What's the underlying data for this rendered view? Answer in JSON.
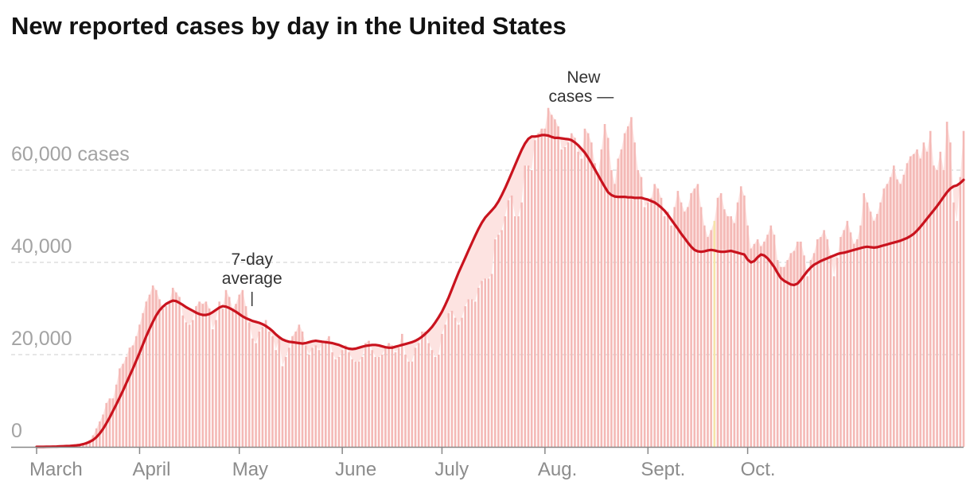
{
  "title": "New reported cases by day in the United States",
  "colors": {
    "bars": "#f4b9b6",
    "band": "#fde3e1",
    "line": "#c9131e",
    "highlight": "#f6e4a8",
    "grid": "#dddddd",
    "axis": "#888888"
  },
  "chart_data": {
    "type": "bar",
    "title": "New reported cases by day in the United States",
    "start_date": "2020-03-01",
    "ylim": [
      0,
      75000
    ],
    "yticks": [
      {
        "value": 0,
        "label": "0"
      },
      {
        "value": 20000,
        "label": "20,000"
      },
      {
        "value": 40000,
        "label": "40,000"
      },
      {
        "value": 60000,
        "label": "60,000 cases"
      }
    ],
    "xticks": [
      {
        "day": 0,
        "label": "March"
      },
      {
        "day": 31,
        "label": "April"
      },
      {
        "day": 61,
        "label": "May"
      },
      {
        "day": 92,
        "label": "June"
      },
      {
        "day": 122,
        "label": "July"
      },
      {
        "day": 153,
        "label": "Aug."
      },
      {
        "day": 184,
        "label": "Sept."
      },
      {
        "day": 214,
        "label": "Oct."
      }
    ],
    "highlight_day": 204,
    "series": [
      {
        "name": "New cases",
        "values": [
          0,
          0,
          10,
          20,
          30,
          40,
          60,
          80,
          100,
          150,
          200,
          300,
          400,
          600,
          800,
          1100,
          1500,
          2500,
          4000,
          5500,
          7000,
          9500,
          10500,
          10500,
          13500,
          17000,
          18000,
          19500,
          21500,
          22000,
          24000,
          26500,
          29000,
          31500,
          33000,
          35000,
          34000,
          32000,
          30000,
          30500,
          31500,
          34500,
          33500,
          32500,
          28500,
          27000,
          26500,
          27500,
          30500,
          31500,
          31000,
          31500,
          30000,
          25500,
          27500,
          31500,
          30000,
          34000,
          32500,
          30000,
          31000,
          33000,
          34000,
          30500,
          27000,
          23500,
          22500,
          25000,
          26000,
          27500,
          25000,
          24000,
          21000,
          23500,
          17500,
          19500,
          21500,
          24000,
          25000,
          26500,
          25000,
          22000,
          20000,
          21500,
          22000,
          21000,
          22500,
          23000,
          24000,
          20500,
          19000,
          19500,
          21000,
          22000,
          20500,
          19000,
          18500,
          18500,
          19500,
          22500,
          23000,
          21000,
          19500,
          19500,
          20000,
          21500,
          22500,
          22000,
          20500,
          21500,
          24500,
          20000,
          18500,
          18500,
          21500,
          22500,
          25000,
          25000,
          22500,
          21000,
          19500,
          20000,
          24500,
          26500,
          29000,
          29500,
          28000,
          26500,
          28000,
          30500,
          32000,
          32000,
          31500,
          34500,
          36000,
          36500,
          36500,
          37500,
          45000,
          46000,
          47000,
          50000,
          53500,
          54500,
          50000,
          50000,
          53000,
          61000,
          61000,
          60000,
          66500,
          68000,
          69000,
          69000,
          73500,
          72000,
          71000,
          69500,
          64500,
          65000,
          66000,
          68000,
          67000,
          64000,
          62500,
          69000,
          68000,
          66000,
          61500,
          59000,
          64500,
          70000,
          67000,
          60000,
          57000,
          62500,
          64500,
          68000,
          69500,
          71500,
          66000,
          60000,
          58500,
          52000,
          53000,
          54000,
          57000,
          56000,
          54000,
          50000,
          51000,
          48000,
          52000,
          55500,
          53000,
          51000,
          52000,
          55000,
          56000,
          57000,
          52000,
          48000,
          45500,
          47000,
          49000,
          54000,
          55000,
          51500,
          50000,
          50000,
          48500,
          53000,
          56500,
          54500,
          48000,
          43000,
          44000,
          45000,
          43500,
          44500,
          46000,
          48000,
          46000,
          40500,
          39000,
          39000,
          40500,
          42000,
          42500,
          44500,
          44500,
          41500,
          37000,
          40500,
          42000,
          45000,
          45500,
          47000,
          45000,
          41500,
          37000,
          41000,
          45500,
          47000,
          49000,
          46500,
          44000,
          45000,
          48000,
          55000,
          53000,
          51000,
          49000,
          50500,
          53000,
          56000,
          57000,
          58500,
          61000,
          58000,
          57000,
          59000,
          61500,
          63000,
          63500,
          64500,
          62500,
          66000,
          64000,
          68500,
          61000,
          60000,
          64000,
          60000,
          70500,
          66000,
          53000,
          49000,
          58500,
          68500
        ]
      },
      {
        "name": "7-day average",
        "values": [
          0,
          0,
          5,
          15,
          30,
          50,
          70,
          95,
          130,
          170,
          210,
          260,
          320,
          420,
          580,
          800,
          1100,
          1500,
          2100,
          2900,
          3900,
          5100,
          6400,
          7800,
          9200,
          10700,
          12200,
          13800,
          15400,
          17000,
          18700,
          20400,
          22200,
          24000,
          25600,
          27100,
          28500,
          29600,
          30400,
          31000,
          31400,
          31700,
          31600,
          31200,
          30800,
          30300,
          29900,
          29500,
          29100,
          28800,
          28600,
          28600,
          28800,
          29200,
          29700,
          30200,
          30500,
          30400,
          30100,
          29700,
          29300,
          28800,
          28300,
          27900,
          27600,
          27300,
          27100,
          26900,
          26600,
          26200,
          25700,
          25100,
          24400,
          23800,
          23300,
          23000,
          22800,
          22700,
          22600,
          22500,
          22400,
          22500,
          22700,
          22900,
          23000,
          22900,
          22800,
          22700,
          22600,
          22500,
          22300,
          22100,
          21800,
          21500,
          21300,
          21200,
          21300,
          21500,
          21700,
          21900,
          22000,
          22100,
          22100,
          22000,
          21800,
          21600,
          21500,
          21500,
          21700,
          21900,
          22100,
          22300,
          22500,
          22700,
          23000,
          23400,
          23900,
          24500,
          25200,
          26000,
          27000,
          28100,
          29300,
          30800,
          32400,
          34200,
          36000,
          37800,
          39400,
          41000,
          42600,
          44200,
          45800,
          47300,
          48600,
          49700,
          50500,
          51300,
          52100,
          53200,
          54600,
          56100,
          57700,
          59400,
          61100,
          62800,
          64400,
          65800,
          66800,
          67300,
          67300,
          67400,
          67600,
          67600,
          67500,
          67200,
          67000,
          67000,
          66900,
          66800,
          66700,
          66500,
          66000,
          65400,
          64600,
          63800,
          62700,
          61500,
          60200,
          58900,
          57600,
          56400,
          55200,
          54600,
          54300,
          54200,
          54200,
          54200,
          54100,
          54100,
          54000,
          54000,
          54000,
          53800,
          53600,
          53300,
          53000,
          52500,
          51900,
          51200,
          50300,
          49300,
          48300,
          47300,
          46200,
          45300,
          44300,
          43400,
          42700,
          42400,
          42300,
          42400,
          42600,
          42700,
          42600,
          42400,
          42300,
          42300,
          42400,
          42500,
          42300,
          42100,
          41900,
          41700,
          40600,
          40000,
          40300,
          41100,
          41700,
          41500,
          40900,
          40000,
          39000,
          37700,
          36600,
          36000,
          35600,
          35200,
          35100,
          35400,
          36200,
          37200,
          38100,
          38900,
          39500,
          39900,
          40300,
          40600,
          40900,
          41200,
          41500,
          41800,
          42000,
          42100,
          42300,
          42500,
          42700,
          42900,
          43100,
          43300,
          43400,
          43300,
          43200,
          43300,
          43500,
          43700,
          43900,
          44100,
          44300,
          44500,
          44700,
          45000,
          45300,
          45700,
          46200,
          46900,
          47700,
          48600,
          49500,
          50400,
          51300,
          52200,
          53200,
          54200,
          55200,
          56000,
          56500,
          56700,
          57200,
          57900,
          59600
        ]
      }
    ],
    "annotations": [
      {
        "lines": [
          "7-day",
          "average"
        ],
        "day": 61
      },
      {
        "lines": [
          "New",
          "cases —"
        ],
        "day": 156
      }
    ]
  }
}
